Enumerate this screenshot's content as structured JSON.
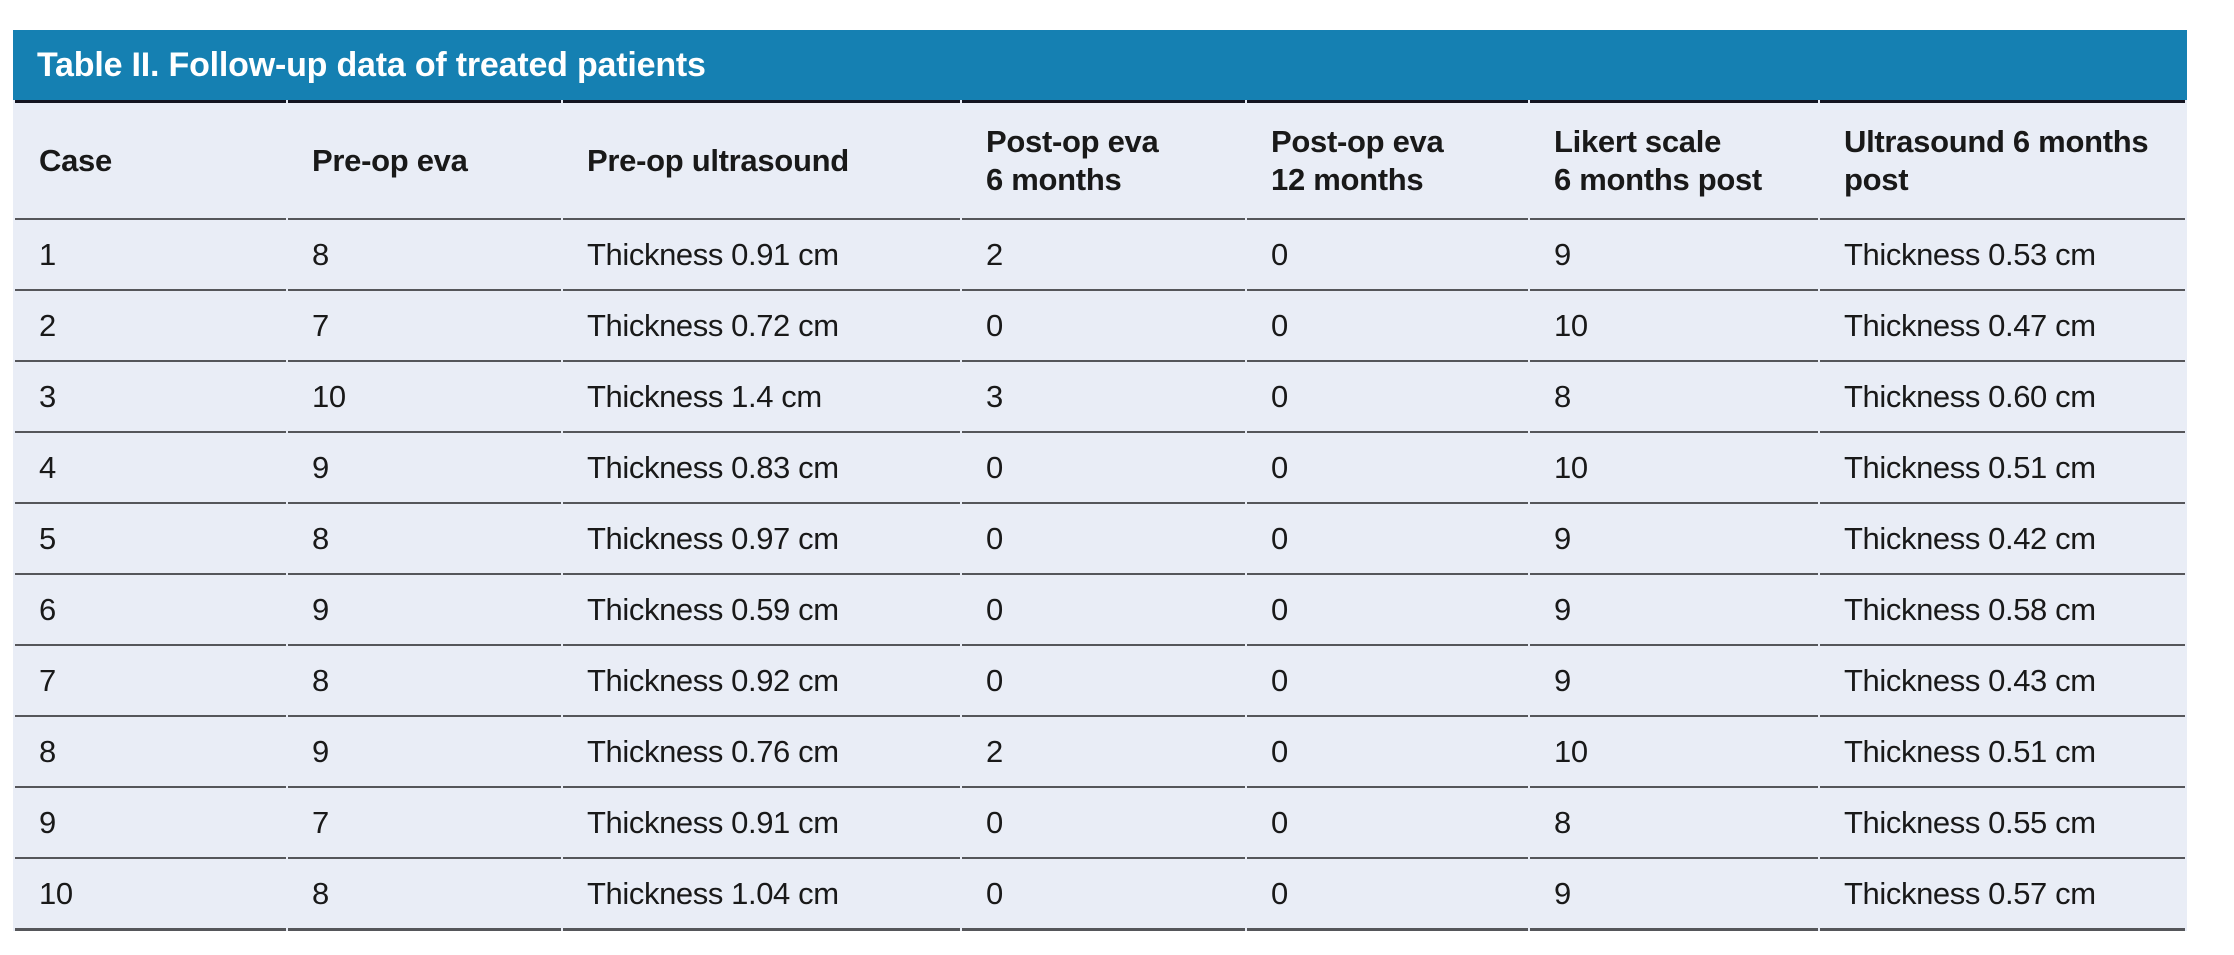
{
  "page": {
    "background": "#FFFFFF"
  },
  "table": {
    "title": "Table II. Follow-up data of treated patients",
    "colors": {
      "banner_bg": "#1580B2",
      "banner_text": "#FFFFFF",
      "body_bg": "#E9EDF6",
      "text": "#191919",
      "banner_rule": "#141420",
      "row_rule": "#55565A"
    },
    "columns": [
      {
        "key": "case",
        "label": "Case"
      },
      {
        "key": "preop-eva",
        "label": "Pre-op eva"
      },
      {
        "key": "preop-ultrasound",
        "label": "Pre-op ultrasound"
      },
      {
        "key": "postop-eva-6m",
        "label": "Post-op eva\n6 months"
      },
      {
        "key": "postop-eva-12m",
        "label": "Post-op eva\n12 months"
      },
      {
        "key": "likert-6m-post",
        "label": "Likert scale\n6 months post"
      },
      {
        "key": "ultrasound-6m-post",
        "label": "Ultrasound 6 months\npost"
      }
    ],
    "rows": [
      [
        "1",
        "8",
        "Thickness 0.91 cm",
        "2",
        "0",
        "9",
        "Thickness 0.53 cm"
      ],
      [
        "2",
        "7",
        "Thickness 0.72 cm",
        "0",
        "0",
        "10",
        "Thickness 0.47 cm"
      ],
      [
        "3",
        "10",
        "Thickness 1.4 cm",
        "3",
        "0",
        "8",
        "Thickness 0.60 cm"
      ],
      [
        "4",
        "9",
        "Thickness 0.83 cm",
        "0",
        "0",
        "10",
        "Thickness 0.51 cm"
      ],
      [
        "5",
        "8",
        "Thickness 0.97 cm",
        "0",
        "0",
        "9",
        "Thickness 0.42 cm"
      ],
      [
        "6",
        "9",
        "Thickness 0.59 cm",
        "0",
        "0",
        "9",
        "Thickness 0.58 cm"
      ],
      [
        "7",
        "8",
        "Thickness 0.92 cm",
        "0",
        "0",
        "9",
        "Thickness 0.43 cm"
      ],
      [
        "8",
        "9",
        "Thickness 0.76 cm",
        "2",
        "0",
        "10",
        "Thickness 0.51 cm"
      ],
      [
        "9",
        "7",
        "Thickness 0.91 cm",
        "0",
        "0",
        "8",
        "Thickness 0.55 cm"
      ],
      [
        "10",
        "8",
        "Thickness 1.04 cm",
        "0",
        "0",
        "9",
        "Thickness 0.57 cm"
      ]
    ]
  },
  "chart_data": {
    "type": "table",
    "title": "Table II. Follow-up data of treated patients",
    "columns": [
      "Case",
      "Pre-op eva",
      "Pre-op ultrasound",
      "Post-op eva 6 months",
      "Post-op eva 12 months",
      "Likert scale 6 months post",
      "Ultrasound 6 months post"
    ],
    "rows": [
      [
        "1",
        "8",
        "Thickness 0.91 cm",
        "2",
        "0",
        "9",
        "Thickness 0.53 cm"
      ],
      [
        "2",
        "7",
        "Thickness 0.72 cm",
        "0",
        "0",
        "10",
        "Thickness 0.47 cm"
      ],
      [
        "3",
        "10",
        "Thickness 1.4 cm",
        "3",
        "0",
        "8",
        "Thickness 0.60 cm"
      ],
      [
        "4",
        "9",
        "Thickness 0.83 cm",
        "0",
        "0",
        "10",
        "Thickness 0.51 cm"
      ],
      [
        "5",
        "8",
        "Thickness 0.97 cm",
        "0",
        "0",
        "9",
        "Thickness 0.42 cm"
      ],
      [
        "6",
        "9",
        "Thickness 0.59 cm",
        "0",
        "0",
        "9",
        "Thickness 0.58 cm"
      ],
      [
        "7",
        "8",
        "Thickness 0.92 cm",
        "0",
        "0",
        "9",
        "Thickness 0.43 cm"
      ],
      [
        "8",
        "9",
        "Thickness 0.76 cm",
        "2",
        "0",
        "10",
        "Thickness 0.51 cm"
      ],
      [
        "9",
        "7",
        "Thickness 0.91 cm",
        "0",
        "0",
        "8",
        "Thickness 0.55 cm"
      ],
      [
        "10",
        "8",
        "Thickness 1.04 cm",
        "0",
        "0",
        "9",
        "Thickness 0.57 cm"
      ]
    ]
  }
}
